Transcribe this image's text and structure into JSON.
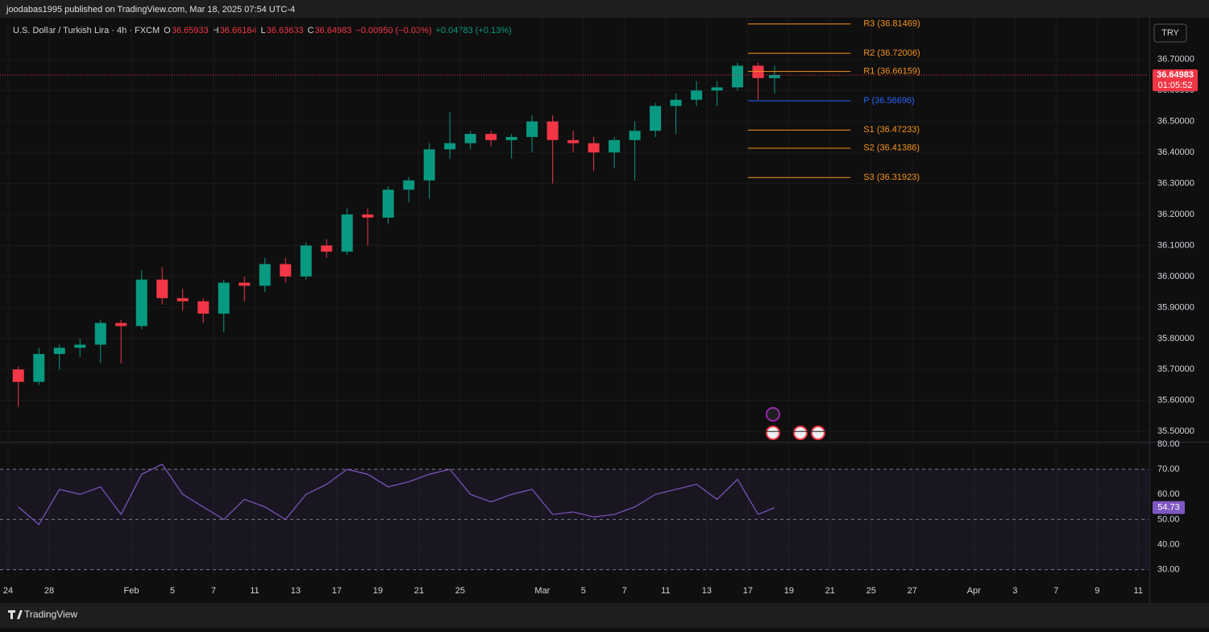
{
  "header": {
    "publisher": "joodabas1995 published on TradingView.com, Mar 18, 2025 07:54 UTC-4",
    "symbol": "U.S. Dollar / Turkish Lira · 4h · FXCM",
    "ohlc": [
      {
        "key": "O",
        "value": "36.65933"
      },
      {
        "key": "H",
        "value": "36.66184"
      },
      {
        "key": "L",
        "value": "36.63633"
      },
      {
        "key": "C",
        "value": "36.64983"
      }
    ],
    "change": "−0.00950 (−0.03%)",
    "change2": "+0.04783 (+0.13%)",
    "currency": "TRY",
    "brand": "TradingView"
  },
  "chart_data": [
    {
      "type": "candlestick",
      "up_color": "#089981",
      "down_color": "#f23645",
      "x": [
        0.5,
        1.5,
        2.5,
        3.5,
        4.5,
        5.5,
        6.5,
        7.5,
        8.5,
        9.5,
        10.5,
        11.5,
        12.5,
        13.5,
        14.5,
        15.5,
        16.5,
        17.5,
        18.5,
        19.5,
        20.5,
        21.5,
        22.5,
        23.5,
        24.5,
        25.5,
        26.5,
        27.5,
        28.5,
        29.5,
        30.5,
        31.5,
        32.5,
        33.5,
        34.5,
        35.5,
        36.5,
        37.3
      ],
      "open": [
        35.7,
        35.66,
        35.75,
        35.77,
        35.78,
        35.85,
        35.84,
        35.99,
        35.93,
        35.92,
        35.88,
        35.98,
        35.97,
        36.04,
        36.0,
        36.1,
        36.08,
        36.2,
        36.19,
        36.28,
        36.31,
        36.41,
        36.43,
        36.46,
        36.44,
        36.45,
        36.5,
        36.44,
        36.43,
        36.4,
        36.44,
        36.47,
        36.55,
        36.57,
        36.6,
        36.61,
        36.68,
        36.64
      ],
      "high": [
        35.71,
        35.77,
        35.78,
        35.8,
        35.86,
        35.86,
        36.02,
        36.03,
        35.96,
        35.93,
        35.99,
        36.0,
        36.06,
        36.06,
        36.11,
        36.12,
        36.22,
        36.22,
        36.29,
        36.32,
        36.43,
        36.53,
        36.47,
        36.47,
        36.46,
        36.52,
        36.52,
        36.47,
        36.45,
        36.45,
        36.5,
        36.56,
        36.59,
        36.63,
        36.63,
        36.69,
        36.69,
        36.68
      ],
      "low": [
        35.58,
        35.65,
        35.7,
        35.74,
        35.72,
        35.72,
        35.83,
        35.91,
        35.89,
        35.85,
        35.82,
        35.92,
        35.95,
        35.98,
        35.99,
        36.06,
        36.07,
        36.1,
        36.17,
        36.24,
        36.25,
        36.38,
        36.41,
        36.42,
        36.38,
        36.4,
        36.3,
        36.4,
        36.34,
        36.35,
        36.31,
        36.45,
        36.46,
        36.55,
        36.55,
        36.6,
        36.57,
        36.59
      ],
      "close": [
        35.66,
        35.75,
        35.77,
        35.78,
        35.85,
        35.84,
        35.99,
        35.93,
        35.92,
        35.88,
        35.98,
        35.97,
        36.04,
        36.0,
        36.1,
        36.08,
        36.2,
        36.19,
        36.28,
        36.31,
        36.41,
        36.43,
        36.46,
        36.44,
        36.45,
        36.5,
        36.44,
        36.43,
        36.4,
        36.44,
        36.47,
        36.55,
        36.57,
        36.6,
        36.61,
        36.68,
        36.64,
        36.65
      ],
      "xlim": [
        0,
        55.5
      ],
      "ylim": [
        35.4668,
        36.8347
      ],
      "xticks": [
        {
          "value": 0,
          "label": "24"
        },
        {
          "value": 2,
          "label": "28"
        },
        {
          "value": 6,
          "label": "Feb"
        },
        {
          "value": 8,
          "label": "5"
        },
        {
          "value": 10,
          "label": "7"
        },
        {
          "value": 12,
          "label": "11"
        },
        {
          "value": 14,
          "label": "13"
        },
        {
          "value": 16,
          "label": "17"
        },
        {
          "value": 18,
          "label": "19"
        },
        {
          "value": 20,
          "label": "21"
        },
        {
          "value": 22,
          "label": "25"
        },
        {
          "value": 26,
          "label": "Mar"
        },
        {
          "value": 28,
          "label": "5"
        },
        {
          "value": 30,
          "label": "7"
        },
        {
          "value": 32,
          "label": "11"
        },
        {
          "value": 34,
          "label": "13"
        },
        {
          "value": 36,
          "label": "17"
        },
        {
          "value": 38,
          "label": "19"
        },
        {
          "value": 40,
          "label": "21"
        },
        {
          "value": 42,
          "label": "25"
        },
        {
          "value": 44,
          "label": "27"
        },
        {
          "value": 47,
          "label": "Apr"
        },
        {
          "value": 49,
          "label": "3"
        },
        {
          "value": 51,
          "label": "7"
        },
        {
          "value": 53,
          "label": "9"
        },
        {
          "value": 55,
          "label": "11"
        }
      ],
      "yticks": [
        {
          "value": 35.5,
          "label": "35.50000"
        },
        {
          "value": 35.6,
          "label": "35.60000"
        },
        {
          "value": 35.7,
          "label": "35.70000"
        },
        {
          "value": 35.8,
          "label": "35.80000"
        },
        {
          "value": 35.9,
          "label": "35.90000"
        },
        {
          "value": 36.0,
          "label": "36.00000"
        },
        {
          "value": 36.1,
          "label": "36.10000"
        },
        {
          "value": 36.2,
          "label": "36.20000"
        },
        {
          "value": 36.3,
          "label": "36.30000"
        },
        {
          "value": 36.4,
          "label": "36.40000"
        },
        {
          "value": 36.5,
          "label": "36.50000"
        },
        {
          "value": 36.6,
          "label": "36.60000"
        },
        {
          "value": 36.7,
          "label": "36.70000"
        }
      ],
      "last_price": {
        "value": 36.64983,
        "label": "36.64983",
        "countdown": "01:05:52",
        "color": "#f23645"
      },
      "pivots": [
        {
          "label": "R3 (36.81469)",
          "value": 36.81469,
          "color": "#f7931a"
        },
        {
          "label": "R2 (36.72006)",
          "value": 36.72006,
          "color": "#f7931a"
        },
        {
          "label": "R1 (36.66159)",
          "value": 36.66159,
          "color": "#f7931a"
        },
        {
          "label": "P (36.56696)",
          "value": 36.56696,
          "color": "#2962ff"
        },
        {
          "label": "S1 (36.47233)",
          "value": 36.47233,
          "color": "#f7931a"
        },
        {
          "label": "S2 (36.41386)",
          "value": 36.41386,
          "color": "#f7931a"
        },
        {
          "label": "S3 (36.31923)",
          "value": 36.31923,
          "color": "#f7931a"
        }
      ],
      "pivot_range": [
        36,
        41
      ]
    },
    {
      "type": "line",
      "x": [
        0.5,
        1.5,
        2.5,
        3.5,
        4.5,
        5.5,
        6.5,
        7.5,
        8.5,
        9.5,
        10.5,
        11.5,
        12.5,
        13.5,
        14.5,
        15.5,
        16.5,
        17.5,
        18.5,
        19.5,
        20.5,
        21.5,
        22.5,
        23.5,
        24.5,
        25.5,
        26.5,
        27.5,
        28.5,
        29.5,
        30.5,
        31.5,
        32.5,
        33.5,
        34.5,
        35.5,
        36.5,
        37.3
      ],
      "series": [
        {
          "name": "RSI",
          "color": "#7e57c2",
          "values": [
            55,
            48,
            62,
            60,
            63,
            52,
            68,
            72,
            60,
            55,
            50,
            58,
            55,
            50,
            60,
            64,
            70,
            68,
            63,
            65,
            68,
            70,
            60,
            57,
            60,
            62,
            52,
            53,
            51,
            52,
            55,
            60,
            62,
            64,
            58,
            66,
            52,
            54.73
          ],
          "value_labels": [
            "",
            "",
            "",
            "",
            "",
            "",
            "",
            "",
            "",
            "",
            "",
            "",
            "",
            "",
            "",
            "",
            "",
            "",
            "",
            "",
            "",
            "",
            "",
            "",
            "",
            "",
            "",
            "",
            "",
            "",
            "",
            "",
            "",
            "",
            "",
            "",
            "",
            "54.73"
          ]
        }
      ],
      "xlim": [
        0,
        55.5
      ],
      "ylim": [
        27,
        80
      ],
      "band": [
        30,
        70
      ],
      "yticks": [
        {
          "value": 30,
          "label": "30.00"
        },
        {
          "value": 40,
          "label": "40.00"
        },
        {
          "value": 50,
          "label": "50.00"
        },
        {
          "value": 60,
          "label": "60.00"
        },
        {
          "value": 70,
          "label": "70.00"
        },
        {
          "value": 80,
          "label": "80.00"
        }
      ]
    }
  ]
}
